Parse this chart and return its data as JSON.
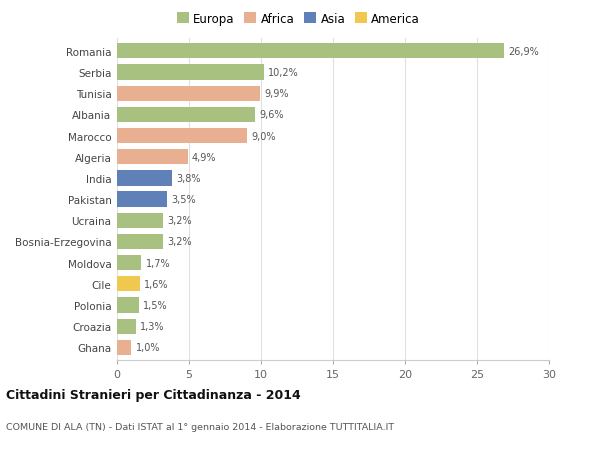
{
  "countries": [
    "Romania",
    "Serbia",
    "Tunisia",
    "Albania",
    "Marocco",
    "Algeria",
    "India",
    "Pakistan",
    "Ucraina",
    "Bosnia-Erzegovina",
    "Moldova",
    "Cile",
    "Polonia",
    "Croazia",
    "Ghana"
  ],
  "values": [
    26.9,
    10.2,
    9.9,
    9.6,
    9.0,
    4.9,
    3.8,
    3.5,
    3.2,
    3.2,
    1.7,
    1.6,
    1.5,
    1.3,
    1.0
  ],
  "labels": [
    "26,9%",
    "10,2%",
    "9,9%",
    "9,6%",
    "9,0%",
    "4,9%",
    "3,8%",
    "3,5%",
    "3,2%",
    "3,2%",
    "1,7%",
    "1,6%",
    "1,5%",
    "1,3%",
    "1,0%"
  ],
  "continents": [
    "Europa",
    "Europa",
    "Africa",
    "Europa",
    "Africa",
    "Africa",
    "Asia",
    "Asia",
    "Europa",
    "Europa",
    "Europa",
    "America",
    "Europa",
    "Europa",
    "Africa"
  ],
  "colors": {
    "Europa": "#a8c080",
    "Africa": "#e8b090",
    "Asia": "#6080b8",
    "America": "#f0c850"
  },
  "title": "Cittadini Stranieri per Cittadinanza - 2014",
  "subtitle": "COMUNE DI ALA (TN) - Dati ISTAT al 1° gennaio 2014 - Elaborazione TUTTITALIA.IT",
  "xlim": [
    0,
    30
  ],
  "xticks": [
    0,
    5,
    10,
    15,
    20,
    25,
    30
  ],
  "background_color": "#ffffff",
  "grid_color": "#e0e0e0",
  "bar_height": 0.72,
  "figwidth": 6.0,
  "figheight": 4.6,
  "dpi": 100
}
